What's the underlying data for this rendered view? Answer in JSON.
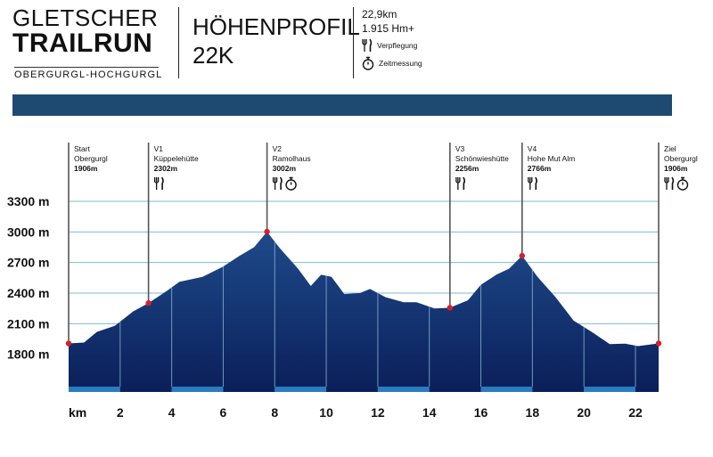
{
  "logo": {
    "line1": "GLETSCHER",
    "line2": "TRAILRUN",
    "subtitle": "OBERGURGL-HOCHGURGL"
  },
  "header": {
    "title_line1": "HÖHENPROFIL",
    "title_line2": "22K",
    "distance": "22,9km",
    "elevation_gain": "1.915 Hm+",
    "legend_food": "Verpflegung",
    "legend_time": "Zeitmessung",
    "food_icon": "fork-knife-icon",
    "time_icon": "stopwatch-icon"
  },
  "colors": {
    "banner": "#1e4a72",
    "fill_top": "#1e4a8a",
    "fill_bottom": "#0b1f5a",
    "grid": "#7fb8d6",
    "marker": "#d4202a",
    "base_strip": "#2a7bc0"
  },
  "chart_data": {
    "type": "area",
    "xlabel": "km",
    "ylabel": "",
    "xlim": [
      0,
      22.9
    ],
    "ylim": [
      1500,
      3300
    ],
    "yticks": [
      1800,
      2100,
      2400,
      2700,
      3000,
      3300
    ],
    "ytick_labels": [
      "1800 m",
      "2100 m",
      "2400 m",
      "2700 m",
      "3000 m",
      "3300 m"
    ],
    "xticks": [
      2,
      4,
      6,
      8,
      10,
      12,
      14,
      16,
      18,
      20,
      22
    ],
    "xtick_labels": [
      "2",
      "4",
      "6",
      "8",
      "10",
      "12",
      "14",
      "16",
      "18",
      "20",
      "22"
    ],
    "x_axis_name": "km",
    "grid": "horizontal",
    "profile": [
      [
        0,
        1906
      ],
      [
        0.6,
        1915
      ],
      [
        1.1,
        2020
      ],
      [
        1.8,
        2080
      ],
      [
        2.5,
        2220
      ],
      [
        3.1,
        2302
      ],
      [
        3.8,
        2420
      ],
      [
        4.3,
        2510
      ],
      [
        5.2,
        2560
      ],
      [
        6.0,
        2660
      ],
      [
        6.6,
        2760
      ],
      [
        7.2,
        2850
      ],
      [
        7.7,
        3002
      ],
      [
        8.2,
        2840
      ],
      [
        8.9,
        2640
      ],
      [
        9.4,
        2470
      ],
      [
        9.8,
        2580
      ],
      [
        10.2,
        2560
      ],
      [
        10.7,
        2390
      ],
      [
        11.3,
        2400
      ],
      [
        11.7,
        2440
      ],
      [
        12.3,
        2360
      ],
      [
        13.0,
        2310
      ],
      [
        13.5,
        2310
      ],
      [
        14.2,
        2250
      ],
      [
        14.8,
        2256
      ],
      [
        15.5,
        2330
      ],
      [
        16.0,
        2480
      ],
      [
        16.6,
        2580
      ],
      [
        17.1,
        2640
      ],
      [
        17.6,
        2766
      ],
      [
        18.2,
        2560
      ],
      [
        18.9,
        2360
      ],
      [
        19.6,
        2130
      ],
      [
        20.3,
        2020
      ],
      [
        21.0,
        1900
      ],
      [
        21.6,
        1905
      ],
      [
        22.1,
        1880
      ],
      [
        22.9,
        1906
      ]
    ],
    "stations": [
      {
        "label": "Start",
        "name": "Obergurgl",
        "elev": "1906m",
        "km": 0,
        "value": 1906,
        "food": false,
        "time": false
      },
      {
        "label": "V1",
        "name": "Küppelehütte",
        "elev": "2302m",
        "km": 3.1,
        "value": 2302,
        "food": true,
        "time": false
      },
      {
        "label": "V2",
        "name": "Ramolhaus",
        "elev": "3002m",
        "km": 7.7,
        "value": 3002,
        "food": true,
        "time": true
      },
      {
        "label": "V3",
        "name": "Schönwieshütte",
        "elev": "2256m",
        "km": 14.8,
        "value": 2256,
        "food": true,
        "time": false
      },
      {
        "label": "V4",
        "name": "Hohe Mut Alm",
        "elev": "2766m",
        "km": 17.6,
        "value": 2766,
        "food": true,
        "time": false
      },
      {
        "label": "Ziel",
        "name": "Obergurgl",
        "elev": "1906m",
        "km": 22.9,
        "value": 1906,
        "food": true,
        "time": true
      }
    ]
  }
}
